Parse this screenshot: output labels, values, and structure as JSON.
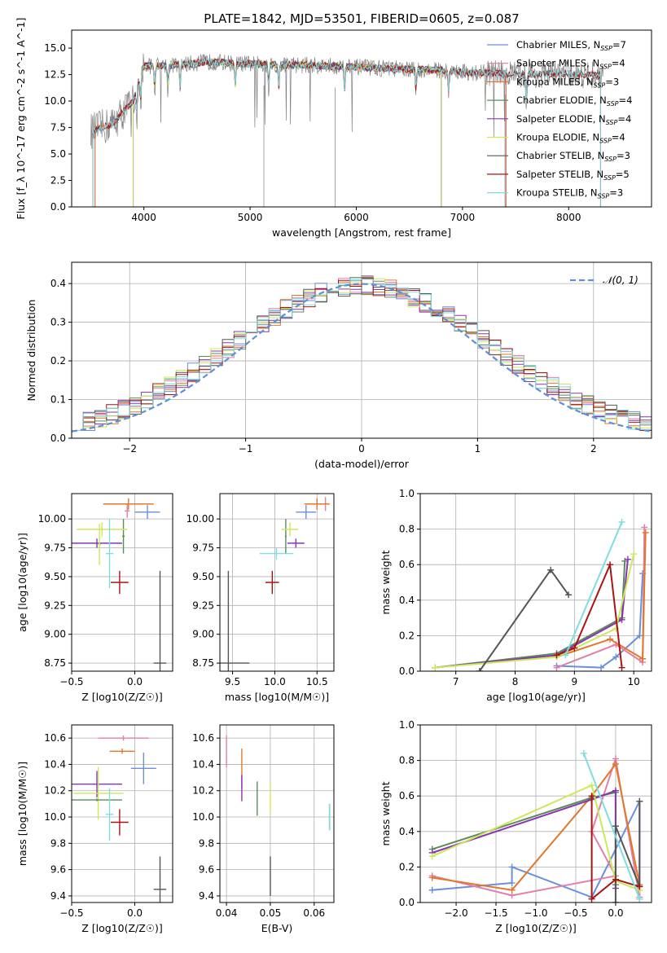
{
  "figure_title": "PLATE=1842, MJD=53501, FIBERID=0605, z=0.087",
  "colors": {
    "Chabrier MILES": "#6a8fdd",
    "Salpeter MILES": "#e27fa8",
    "Kroupa MILES": "#e2772c",
    "Chabrier ELODIE": "#5c8a5c",
    "Salpeter ELODIE": "#8a35b0",
    "Kroupa ELODIE": "#cde85a",
    "Chabrier STELIB": "#555555",
    "Salpeter STELIB": "#a81414",
    "Kroupa STELIB": "#7fdde0",
    "data": "#808080",
    "normal": "#5f8fd8",
    "grid": "#b0b0b0"
  },
  "chart_data": [
    {
      "id": "spectrum",
      "type": "line",
      "title": "PLATE=1842, MJD=53501, FIBERID=0605, z=0.087",
      "xlabel": "wavelength [Angstrom, rest frame]",
      "ylabel": "Flux [f_λ 10^-17 erg cm^-2 s^-1 A^-1]",
      "xlim": [
        3320,
        8780
      ],
      "ylim": [
        0,
        16.7
      ],
      "xticks": [
        4000,
        5000,
        6000,
        7000,
        8000
      ],
      "yticks": [
        0.0,
        2.5,
        5.0,
        7.5,
        10.0,
        12.5,
        15.0
      ],
      "grid": false,
      "legend_position": "right",
      "legend": [
        {
          "label": "Chabrier MILES, N",
          "sub": "SSP",
          "suffix": "=7",
          "color_key": "Chabrier MILES"
        },
        {
          "label": "Salpeter MILES, N",
          "sub": "SSP",
          "suffix": "=4",
          "color_key": "Salpeter MILES"
        },
        {
          "label": "Kroupa MILES, N",
          "sub": "SSP",
          "suffix": "=3",
          "color_key": "Kroupa MILES"
        },
        {
          "label": "Chabrier ELODIE, N",
          "sub": "SSP",
          "suffix": "=4",
          "color_key": "Chabrier ELODIE"
        },
        {
          "label": "Salpeter ELODIE, N",
          "sub": "SSP",
          "suffix": "=4",
          "color_key": "Salpeter ELODIE"
        },
        {
          "label": "Kroupa ELODIE, N",
          "sub": "SSP",
          "suffix": "=4",
          "color_key": "Kroupa ELODIE"
        },
        {
          "label": "Chabrier STELIB, N",
          "sub": "SSP",
          "suffix": "=3",
          "color_key": "Chabrier STELIB"
        },
        {
          "label": "Salpeter STELIB, N",
          "sub": "SSP",
          "suffix": "=5",
          "color_key": "Salpeter STELIB"
        },
        {
          "label": "Kroupa STELIB, N",
          "sub": "SSP",
          "suffix": "=3",
          "color_key": "Kroupa STELIB"
        }
      ],
      "continuum": [
        [
          3520,
          7.2
        ],
        [
          3700,
          7.8
        ],
        [
          3900,
          10.0
        ],
        [
          4000,
          13.3
        ],
        [
          4300,
          13.4
        ],
        [
          4600,
          13.7
        ],
        [
          5000,
          13.5
        ],
        [
          5500,
          13.4
        ],
        [
          6000,
          13.2
        ],
        [
          6500,
          13.0
        ],
        [
          6800,
          12.9
        ],
        [
          7100,
          12.7
        ],
        [
          7400,
          12.6
        ],
        [
          7600,
          12.5
        ],
        [
          8000,
          12.6
        ],
        [
          8300,
          12.4
        ]
      ],
      "absorption_lines": [
        3934,
        3969,
        4102,
        4227,
        4340,
        4861,
        5175,
        5270,
        5890,
        6563,
        6870,
        7600
      ],
      "model_edges": {
        "MILES": [
          3540,
          7410
        ],
        "ELODIE": [
          3900,
          6800
        ],
        "STELIB": [
          3520,
          8300
        ]
      }
    },
    {
      "id": "residuals",
      "type": "histogram",
      "xlabel": "(data-model)/error",
      "ylabel": "Normed distribution",
      "xlim": [
        -2.5,
        2.5
      ],
      "ylim": [
        0,
        0.455
      ],
      "xticks": [
        -2,
        -1,
        0,
        1,
        2
      ],
      "yticks": [
        0.0,
        0.1,
        0.2,
        0.3,
        0.4
      ],
      "grid": true,
      "legend_position": "upper right",
      "legend_label": "𝒩(0, 1)",
      "bin_width": 0.1,
      "normal_curve": {
        "mean": 0,
        "sigma": 1
      }
    },
    {
      "id": "age_vs_Z",
      "type": "errorbar",
      "xlabel": "Z [log10(Z/Z☉)]",
      "ylabel": "age  [log10(age/yr)]",
      "xlim": [
        -0.5,
        0.3
      ],
      "ylim": [
        8.68,
        10.22
      ],
      "xticks": [
        -0.5,
        0.0
      ],
      "yticks": [
        8.75,
        9.0,
        9.25,
        9.5,
        9.75,
        10.0
      ],
      "points": [
        {
          "model": "Chabrier MILES",
          "x": 0.1,
          "y": 10.06,
          "xerr": 0.1,
          "yerr": 0.06
        },
        {
          "model": "Kroupa MILES",
          "x": -0.05,
          "y": 10.13,
          "xerr": 0.2,
          "yerr": 0.05
        },
        {
          "model": "Salpeter MILES",
          "x": -0.06,
          "y": 10.07,
          "xerr": 0.02,
          "yerr": 0.06
        },
        {
          "model": "Chabrier ELODIE",
          "x": -0.09,
          "y": 9.85,
          "xerr": 0.01,
          "yerr": 0.15
        },
        {
          "model": "Kroupa ELODIE",
          "x": -0.26,
          "y": 9.91,
          "xerr": 0.2,
          "yerr": 0.06
        },
        {
          "model": "Salpeter ELODIE",
          "x": -0.3,
          "y": 9.79,
          "xerr": 0.2,
          "yerr": 0.04
        },
        {
          "model": "Kroupa ELODIE",
          "x": -0.28,
          "y": 9.78,
          "xerr": 0.01,
          "yerr": 0.18
        },
        {
          "model": "Kroupa STELIB",
          "x": -0.2,
          "y": 9.7,
          "xerr": 0.03,
          "yerr": 0.3
        },
        {
          "model": "Salpeter STELIB",
          "x": -0.12,
          "y": 9.45,
          "xerr": 0.07,
          "yerr": 0.1
        },
        {
          "model": "Chabrier STELIB",
          "x": 0.2,
          "y": 8.75,
          "xerr": 0.05,
          "yerr": 0.8
        }
      ]
    },
    {
      "id": "age_vs_mass",
      "type": "errorbar",
      "xlabel": "mass [log10(M/M☉)]",
      "ylabel": "",
      "xlim": [
        9.35,
        10.7
      ],
      "ylim": [
        8.68,
        10.22
      ],
      "xticks": [
        9.5,
        10.0,
        10.5
      ],
      "yticks": [
        8.75,
        9.0,
        9.25,
        9.5,
        9.75,
        10.0
      ],
      "points": [
        {
          "model": "Salpeter MILES",
          "x": 10.6,
          "y": 10.13,
          "xerr": 0.02,
          "yerr": 0.06
        },
        {
          "model": "Kroupa MILES",
          "x": 10.5,
          "y": 10.13,
          "xerr": 0.15,
          "yerr": 0.05
        },
        {
          "model": "Chabrier MILES",
          "x": 10.37,
          "y": 10.06,
          "xerr": 0.12,
          "yerr": 0.06
        },
        {
          "model": "Chabrier ELODIE",
          "x": 10.13,
          "y": 9.85,
          "xerr": 0.01,
          "yerr": 0.15
        },
        {
          "model": "Kroupa ELODIE",
          "x": 10.18,
          "y": 9.91,
          "xerr": 0.1,
          "yerr": 0.06
        },
        {
          "model": "Salpeter ELODIE",
          "x": 10.25,
          "y": 9.79,
          "xerr": 0.1,
          "yerr": 0.04
        },
        {
          "model": "Kroupa STELIB",
          "x": 10.02,
          "y": 9.7,
          "xerr": 0.2,
          "yerr": 0.05
        },
        {
          "model": "Salpeter STELIB",
          "x": 9.97,
          "y": 9.45,
          "xerr": 0.08,
          "yerr": 0.1
        },
        {
          "model": "Chabrier STELIB",
          "x": 9.45,
          "y": 8.75,
          "xerr": 0.25,
          "yerr": 0.8
        }
      ]
    },
    {
      "id": "weight_vs_age",
      "type": "line",
      "xlabel": "age  [log10(age/yr)]",
      "ylabel": "mass weight",
      "xlim": [
        6.4,
        10.3
      ],
      "ylim": [
        0,
        1
      ],
      "xticks": [
        7,
        8,
        9,
        10
      ],
      "yticks": [
        0.0,
        0.2,
        0.4,
        0.6,
        0.8,
        1.0
      ],
      "grid": true,
      "series": [
        {
          "model": "Chabrier MILES",
          "x": [
            8.7,
            9.45,
            9.7,
            10.1,
            10.15
          ],
          "y": [
            0.03,
            0.02,
            0.08,
            0.2,
            0.55
          ]
        },
        {
          "model": "Salpeter MILES",
          "x": [
            8.7,
            9.7,
            10.15,
            10.18
          ],
          "y": [
            0.02,
            0.15,
            0.05,
            0.81
          ]
        },
        {
          "model": "Kroupa MILES",
          "x": [
            8.7,
            9.6,
            10.15,
            10.2
          ],
          "y": [
            0.08,
            0.18,
            0.07,
            0.78
          ]
        },
        {
          "model": "Chabrier ELODIE",
          "x": [
            6.65,
            8.7,
            9.8,
            9.85
          ],
          "y": [
            0.02,
            0.1,
            0.3,
            0.62
          ]
        },
        {
          "model": "Salpeter ELODIE",
          "x": [
            6.65,
            8.7,
            9.8,
            9.9
          ],
          "y": [
            0.02,
            0.09,
            0.29,
            0.63
          ]
        },
        {
          "model": "Kroupa ELODIE",
          "x": [
            6.65,
            8.7,
            9.7,
            10.0
          ],
          "y": [
            0.02,
            0.08,
            0.24,
            0.66
          ]
        },
        {
          "model": "Chabrier STELIB",
          "x": [
            7.4,
            8.6,
            8.9
          ],
          "y": [
            0.0,
            0.57,
            0.43
          ]
        },
        {
          "model": "Salpeter STELIB",
          "x": [
            8.7,
            9.0,
            9.6,
            9.8
          ],
          "y": [
            0.09,
            0.13,
            0.6,
            0.02
          ]
        },
        {
          "model": "Kroupa STELIB",
          "x": [
            8.85,
            9.8
          ],
          "y": [
            0.09,
            0.84
          ]
        }
      ]
    },
    {
      "id": "mass_vs_Z",
      "type": "errorbar",
      "xlabel": "Z [log10(Z/Z☉)]",
      "ylabel": "mass [log10(M/M☉)]",
      "xlim": [
        -0.5,
        0.3
      ],
      "ylim": [
        9.35,
        10.7
      ],
      "xticks": [
        -0.5,
        0.0
      ],
      "yticks": [
        9.4,
        9.6,
        9.8,
        10.0,
        10.2,
        10.4,
        10.6
      ],
      "points": [
        {
          "model": "Salpeter MILES",
          "x": -0.09,
          "y": 10.6,
          "xerr": 0.2,
          "yerr": 0.02
        },
        {
          "model": "Kroupa MILES",
          "x": -0.1,
          "y": 10.5,
          "xerr": 0.1,
          "yerr": 0.02
        },
        {
          "model": "Chabrier MILES",
          "x": 0.07,
          "y": 10.37,
          "xerr": 0.1,
          "yerr": 0.12
        },
        {
          "model": "Salpeter ELODIE",
          "x": -0.3,
          "y": 10.25,
          "xerr": 0.2,
          "yerr": 0.1
        },
        {
          "model": "Kroupa ELODIE",
          "x": -0.29,
          "y": 10.18,
          "xerr": 0.2,
          "yerr": 0.2
        },
        {
          "model": "Chabrier ELODIE",
          "x": -0.3,
          "y": 10.13,
          "xerr": 0.2,
          "yerr": 0.01
        },
        {
          "model": "Kroupa STELIB",
          "x": -0.2,
          "y": 10.02,
          "xerr": 0.03,
          "yerr": 0.2
        },
        {
          "model": "Salpeter STELIB",
          "x": -0.12,
          "y": 9.96,
          "xerr": 0.07,
          "yerr": 0.1
        },
        {
          "model": "Chabrier STELIB",
          "x": 0.2,
          "y": 9.45,
          "xerr": 0.05,
          "yerr": 0.25
        }
      ]
    },
    {
      "id": "mass_vs_ebv",
      "type": "errorbar",
      "xlabel": "E(B-V)",
      "ylabel": "",
      "xlim": [
        0.0385,
        0.0645
      ],
      "ylim": [
        9.35,
        10.7
      ],
      "xticks": [
        0.04,
        0.05,
        0.06
      ],
      "yticks": [
        9.4,
        9.6,
        9.8,
        10.0,
        10.2,
        10.4,
        10.6
      ],
      "points": [
        {
          "model": "Salpeter MILES",
          "x": 0.04,
          "y": 10.5,
          "xerr": 0,
          "yerr": 0.12
        },
        {
          "model": "Kroupa MILES",
          "x": 0.0435,
          "y": 10.37,
          "xerr": 0,
          "yerr": 0.15
        },
        {
          "model": "Salpeter ELODIE",
          "x": 0.0435,
          "y": 10.22,
          "xerr": 0,
          "yerr": 0.1
        },
        {
          "model": "Chabrier ELODIE",
          "x": 0.047,
          "y": 10.14,
          "xerr": 0,
          "yerr": 0.13
        },
        {
          "model": "Kroupa ELODIE",
          "x": 0.05,
          "y": 10.14,
          "xerr": 0,
          "yerr": 0.12
        },
        {
          "model": "Chabrier STELIB",
          "x": 0.05,
          "y": 9.55,
          "xerr": 0,
          "yerr": 0.15
        },
        {
          "model": "Chabrier ELODIE",
          "x": 0.0635,
          "y": 10.0,
          "xerr": 0,
          "yerr": 0.1
        },
        {
          "model": "Kroupa STELIB",
          "x": 0.0635,
          "y": 10.0,
          "xerr": 0,
          "yerr": 0.1
        }
      ]
    },
    {
      "id": "weight_vs_Z",
      "type": "line",
      "xlabel": "Z [log10(Z/Z☉)]",
      "ylabel": "mass weight",
      "xlim": [
        -2.45,
        0.45
      ],
      "ylim": [
        0,
        1
      ],
      "xticks": [
        -2.0,
        -1.5,
        -1.0,
        -0.5,
        0.0
      ],
      "yticks": [
        0.0,
        0.2,
        0.4,
        0.6,
        0.8,
        1.0
      ],
      "grid": true,
      "series": [
        {
          "model": "Chabrier MILES",
          "x": [
            -2.3,
            -1.3,
            -1.3,
            -0.3,
            0.3,
            0.3
          ],
          "y": [
            0.07,
            0.11,
            0.2,
            0.03,
            0.57,
            0.02
          ]
        },
        {
          "model": "Salpeter MILES",
          "x": [
            -2.3,
            -1.3,
            0.0,
            -0.3,
            0.0,
            0.3
          ],
          "y": [
            0.15,
            0.04,
            0.15,
            0.4,
            0.81,
            0.03
          ]
        },
        {
          "model": "Kroupa MILES",
          "x": [
            -2.3,
            -1.3,
            -0.3,
            0.0,
            0.3
          ],
          "y": [
            0.14,
            0.07,
            0.6,
            0.78,
            0.1
          ]
        },
        {
          "model": "Chabrier ELODIE",
          "x": [
            -2.3,
            -0.3,
            0.0,
            0.0
          ],
          "y": [
            0.3,
            0.59,
            0.62,
            0.1
          ]
        },
        {
          "model": "Salpeter ELODIE",
          "x": [
            -2.3,
            -0.3,
            0.0,
            0.0
          ],
          "y": [
            0.28,
            0.58,
            0.63,
            0.08
          ]
        },
        {
          "model": "Kroupa ELODIE",
          "x": [
            -2.3,
            -0.3,
            0.0,
            0.3
          ],
          "y": [
            0.26,
            0.66,
            0.12,
            0.07
          ]
        },
        {
          "model": "Chabrier STELIB",
          "x": [
            0.0,
            0.0,
            0.3,
            0.3
          ],
          "y": [
            0.0,
            0.43,
            0.09,
            0.57
          ]
        },
        {
          "model": "Salpeter STELIB",
          "x": [
            -0.3,
            -0.3,
            0.0,
            0.3
          ],
          "y": [
            0.6,
            0.02,
            0.13,
            0.09
          ]
        },
        {
          "model": "Kroupa STELIB",
          "x": [
            -0.4,
            0.3
          ],
          "y": [
            0.84,
            0.02
          ]
        }
      ]
    }
  ]
}
